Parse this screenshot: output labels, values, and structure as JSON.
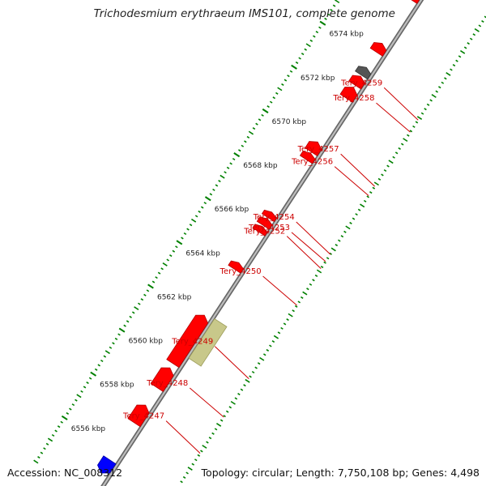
{
  "title": "Trichodesmium erythraeum IMS101, complete genome",
  "footer": {
    "accession_label": "Accession:",
    "accession": "NC_008312",
    "topology_label": "Topology:",
    "topology": "circular",
    "length_label": "Length:",
    "length": "7,750,108 bp",
    "genes_label": "Genes:",
    "genes": "4,498"
  },
  "colors": {
    "backbone": "#999999",
    "gene": "#ff0000",
    "pseudogene": "#c8c88a",
    "rna": "#0000ff",
    "other": "#555555",
    "tick": "#008000",
    "label": "#cc0000"
  },
  "scale_unit": "kbp",
  "scale_ticks": [
    {
      "kbp": 6556,
      "label": "6556 kbp"
    },
    {
      "kbp": 6558,
      "label": "6558 kbp"
    },
    {
      "kbp": 6560,
      "label": "6560 kbp"
    },
    {
      "kbp": 6562,
      "label": "6562 kbp"
    },
    {
      "kbp": 6564,
      "label": "6564 kbp"
    },
    {
      "kbp": 6566,
      "label": "6566 kbp"
    },
    {
      "kbp": 6568,
      "label": "6568 kbp"
    },
    {
      "kbp": 6570,
      "label": "6570 kbp"
    },
    {
      "kbp": 6572,
      "label": "6572 kbp"
    },
    {
      "kbp": 6574,
      "label": "6574 kbp"
    }
  ],
  "genes": [
    {
      "name": "Tery_4247",
      "kbp_start": 6557.3,
      "kbp_end": 6558.1,
      "strand": "+",
      "type": "gene"
    },
    {
      "name": "Tery_4248",
      "kbp_start": 6558.9,
      "kbp_end": 6559.8,
      "strand": "+",
      "type": "gene"
    },
    {
      "name": "Tery_4249",
      "kbp_start": 6560.0,
      "kbp_end": 6562.2,
      "strand": "+",
      "type": "gene"
    },
    {
      "name": "",
      "kbp_start": 6560.5,
      "kbp_end": 6562.3,
      "strand": "+",
      "type": "pseudogene"
    },
    {
      "name": "Tery_4250",
      "kbp_start": 6564.3,
      "kbp_end": 6564.6,
      "strand": "+",
      "type": "gene"
    },
    {
      "name": "Tery_4252",
      "kbp_start": 6566.0,
      "kbp_end": 6566.25,
      "strand": "+",
      "type": "gene"
    },
    {
      "name": "Tery_4253",
      "kbp_start": 6566.3,
      "kbp_end": 6566.6,
      "strand": "+",
      "type": "gene"
    },
    {
      "name": "Tery_4254",
      "kbp_start": 6566.65,
      "kbp_end": 6566.9,
      "strand": "+",
      "type": "gene"
    },
    {
      "name": "Tery_4256",
      "kbp_start": 6569.3,
      "kbp_end": 6569.6,
      "strand": "+",
      "type": "gene"
    },
    {
      "name": "Tery_4257",
      "kbp_start": 6569.65,
      "kbp_end": 6570.1,
      "strand": "+",
      "type": "gene"
    },
    {
      "name": "Tery_4258",
      "kbp_start": 6572.1,
      "kbp_end": 6572.6,
      "strand": "+",
      "type": "gene"
    },
    {
      "name": "Tery_4259",
      "kbp_start": 6572.7,
      "kbp_end": 6573.1,
      "strand": "+",
      "type": "gene"
    },
    {
      "name": "",
      "kbp_start": 6573.15,
      "kbp_end": 6573.5,
      "strand": "+",
      "type": "other"
    },
    {
      "name": "",
      "kbp_start": 6574.2,
      "kbp_end": 6574.6,
      "strand": "+",
      "type": "gene"
    },
    {
      "name": "",
      "kbp_start": 6576.6,
      "kbp_end": 6577.0,
      "strand": "+",
      "type": "gene"
    },
    {
      "name": "",
      "kbp_start": 6555.0,
      "kbp_end": 6555.6,
      "strand": "-",
      "type": "rna"
    }
  ]
}
